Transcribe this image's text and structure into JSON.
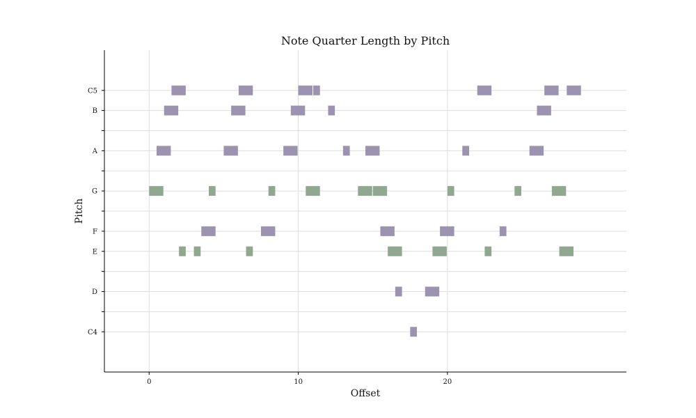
{
  "chart_data": {
    "type": "bar",
    "title": "Note Quarter Length by Pitch",
    "xlabel": "Offset",
    "ylabel": "Pitch",
    "xlim": [
      -3,
      32
    ],
    "ylim": [
      58,
      74
    ],
    "x_ticks": [
      0,
      10,
      20
    ],
    "y_ticks": [
      {
        "value": 60,
        "label": "C4"
      },
      {
        "value": 61,
        "label": ""
      },
      {
        "value": 62,
        "label": "D"
      },
      {
        "value": 63,
        "label": ""
      },
      {
        "value": 64,
        "label": "E"
      },
      {
        "value": 65,
        "label": "F"
      },
      {
        "value": 66,
        "label": ""
      },
      {
        "value": 67,
        "label": "G"
      },
      {
        "value": 68,
        "label": ""
      },
      {
        "value": 69,
        "label": "A"
      },
      {
        "value": 70,
        "label": ""
      },
      {
        "value": 71,
        "label": "B"
      },
      {
        "value": 72,
        "label": "C5"
      }
    ],
    "grid": true,
    "colors": {
      "purple": "#9b93b0",
      "green": "#8fa88f"
    },
    "notes": [
      {
        "offset": 0.0,
        "duration": 1.0,
        "pitch": 67,
        "color": "green"
      },
      {
        "offset": 0.5,
        "duration": 1.0,
        "pitch": 69,
        "color": "purple"
      },
      {
        "offset": 1.0,
        "duration": 1.0,
        "pitch": 71,
        "color": "purple"
      },
      {
        "offset": 1.5,
        "duration": 1.0,
        "pitch": 72,
        "color": "purple"
      },
      {
        "offset": 2.0,
        "duration": 0.5,
        "pitch": 64,
        "color": "green"
      },
      {
        "offset": 3.0,
        "duration": 0.5,
        "pitch": 64,
        "color": "green"
      },
      {
        "offset": 3.5,
        "duration": 1.0,
        "pitch": 65,
        "color": "purple"
      },
      {
        "offset": 4.0,
        "duration": 0.5,
        "pitch": 67,
        "color": "green"
      },
      {
        "offset": 5.0,
        "duration": 1.0,
        "pitch": 69,
        "color": "purple"
      },
      {
        "offset": 5.5,
        "duration": 1.0,
        "pitch": 71,
        "color": "purple"
      },
      {
        "offset": 6.0,
        "duration": 1.0,
        "pitch": 72,
        "color": "purple"
      },
      {
        "offset": 6.5,
        "duration": 0.5,
        "pitch": 64,
        "color": "green"
      },
      {
        "offset": 7.5,
        "duration": 1.0,
        "pitch": 65,
        "color": "purple"
      },
      {
        "offset": 8.0,
        "duration": 0.5,
        "pitch": 67,
        "color": "green"
      },
      {
        "offset": 9.0,
        "duration": 1.0,
        "pitch": 69,
        "color": "purple"
      },
      {
        "offset": 9.5,
        "duration": 1.0,
        "pitch": 71,
        "color": "purple"
      },
      {
        "offset": 10.0,
        "duration": 1.0,
        "pitch": 72,
        "color": "purple"
      },
      {
        "offset": 10.5,
        "duration": 1.0,
        "pitch": 67,
        "color": "green"
      },
      {
        "offset": 11.0,
        "duration": 0.5,
        "pitch": 72,
        "color": "purple"
      },
      {
        "offset": 12.0,
        "duration": 0.5,
        "pitch": 71,
        "color": "purple"
      },
      {
        "offset": 13.0,
        "duration": 0.5,
        "pitch": 69,
        "color": "purple"
      },
      {
        "offset": 14.0,
        "duration": 1.0,
        "pitch": 67,
        "color": "green"
      },
      {
        "offset": 14.5,
        "duration": 1.0,
        "pitch": 69,
        "color": "purple"
      },
      {
        "offset": 15.0,
        "duration": 1.0,
        "pitch": 67,
        "color": "green"
      },
      {
        "offset": 15.5,
        "duration": 1.0,
        "pitch": 65,
        "color": "purple"
      },
      {
        "offset": 16.0,
        "duration": 1.0,
        "pitch": 64,
        "color": "green"
      },
      {
        "offset": 16.5,
        "duration": 0.5,
        "pitch": 62,
        "color": "purple"
      },
      {
        "offset": 17.5,
        "duration": 0.5,
        "pitch": 60,
        "color": "purple"
      },
      {
        "offset": 18.5,
        "duration": 1.0,
        "pitch": 62,
        "color": "purple"
      },
      {
        "offset": 19.0,
        "duration": 1.0,
        "pitch": 64,
        "color": "green"
      },
      {
        "offset": 19.5,
        "duration": 1.0,
        "pitch": 65,
        "color": "purple"
      },
      {
        "offset": 20.0,
        "duration": 0.5,
        "pitch": 67,
        "color": "green"
      },
      {
        "offset": 21.0,
        "duration": 0.5,
        "pitch": 69,
        "color": "purple"
      },
      {
        "offset": 22.0,
        "duration": 1.0,
        "pitch": 72,
        "color": "purple"
      },
      {
        "offset": 22.5,
        "duration": 0.5,
        "pitch": 64,
        "color": "green"
      },
      {
        "offset": 23.5,
        "duration": 0.5,
        "pitch": 65,
        "color": "purple"
      },
      {
        "offset": 24.5,
        "duration": 0.5,
        "pitch": 67,
        "color": "green"
      },
      {
        "offset": 25.5,
        "duration": 1.0,
        "pitch": 69,
        "color": "purple"
      },
      {
        "offset": 26.0,
        "duration": 1.0,
        "pitch": 71,
        "color": "purple"
      },
      {
        "offset": 26.5,
        "duration": 1.0,
        "pitch": 72,
        "color": "purple"
      },
      {
        "offset": 27.0,
        "duration": 1.0,
        "pitch": 67,
        "color": "green"
      },
      {
        "offset": 27.5,
        "duration": 1.0,
        "pitch": 64,
        "color": "green"
      },
      {
        "offset": 28.0,
        "duration": 1.0,
        "pitch": 72,
        "color": "purple"
      }
    ]
  }
}
